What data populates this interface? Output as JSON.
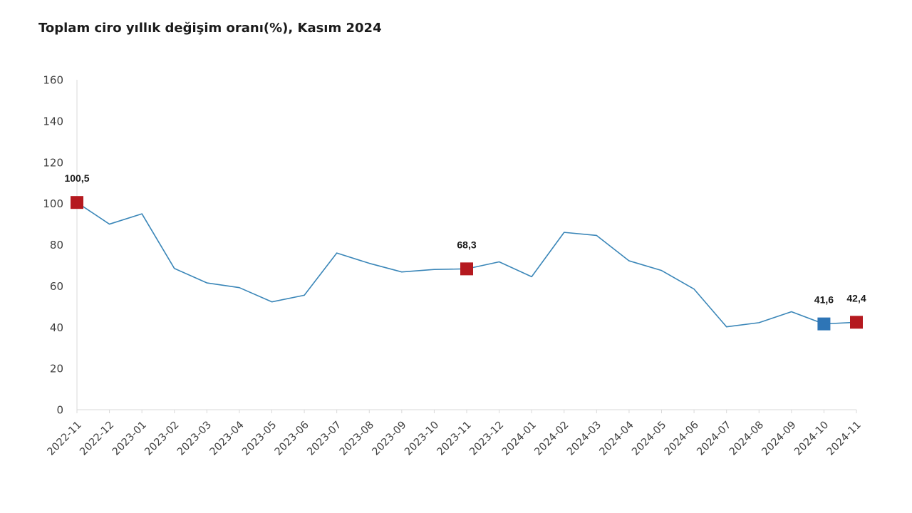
{
  "chart_data": {
    "type": "line",
    "title": "Toplam ciro yıllık değişim oranı(%), Kasım 2024",
    "xlabel": "",
    "ylabel": "",
    "ylim": [
      0,
      160
    ],
    "yticks": [
      0,
      20,
      40,
      60,
      80,
      100,
      120,
      140,
      160
    ],
    "grid": false,
    "legend": "none",
    "categories": [
      "2022-11",
      "2022-12",
      "2023-01",
      "2023-02",
      "2023-03",
      "2023-04",
      "2023-05",
      "2023-06",
      "2023-07",
      "2023-08",
      "2023-09",
      "2023-10",
      "2023-11",
      "2023-12",
      "2024-01",
      "2024-02",
      "2024-03",
      "2024-04",
      "2024-05",
      "2024-06",
      "2024-07",
      "2024-08",
      "2024-09",
      "2024-10",
      "2024-11"
    ],
    "series": [
      {
        "values": [
          100.5,
          90,
          95,
          68.5,
          61.5,
          59.2,
          52.3,
          55.5,
          76,
          71,
          66.8,
          68,
          68.3,
          71.7,
          64.5,
          86,
          84.5,
          72.2,
          67.5,
          58.5,
          40.2,
          42.2,
          47.5,
          41.6,
          42.4
        ],
        "color": "#3a86b8"
      }
    ],
    "highlighted_points": [
      {
        "category": "2022-11",
        "value": 100.5,
        "label": "100,5",
        "color": "#b5191f"
      },
      {
        "category": "2023-11",
        "value": 68.3,
        "label": "68,3",
        "color": "#b5191f"
      },
      {
        "category": "2024-10",
        "value": 41.6,
        "label": "41,6",
        "color": "#2e75b6"
      },
      {
        "category": "2024-11",
        "value": 42.4,
        "label": "42,4",
        "color": "#b5191f"
      }
    ],
    "axis_color": "#d9d9d9",
    "text_color": "#404040"
  }
}
